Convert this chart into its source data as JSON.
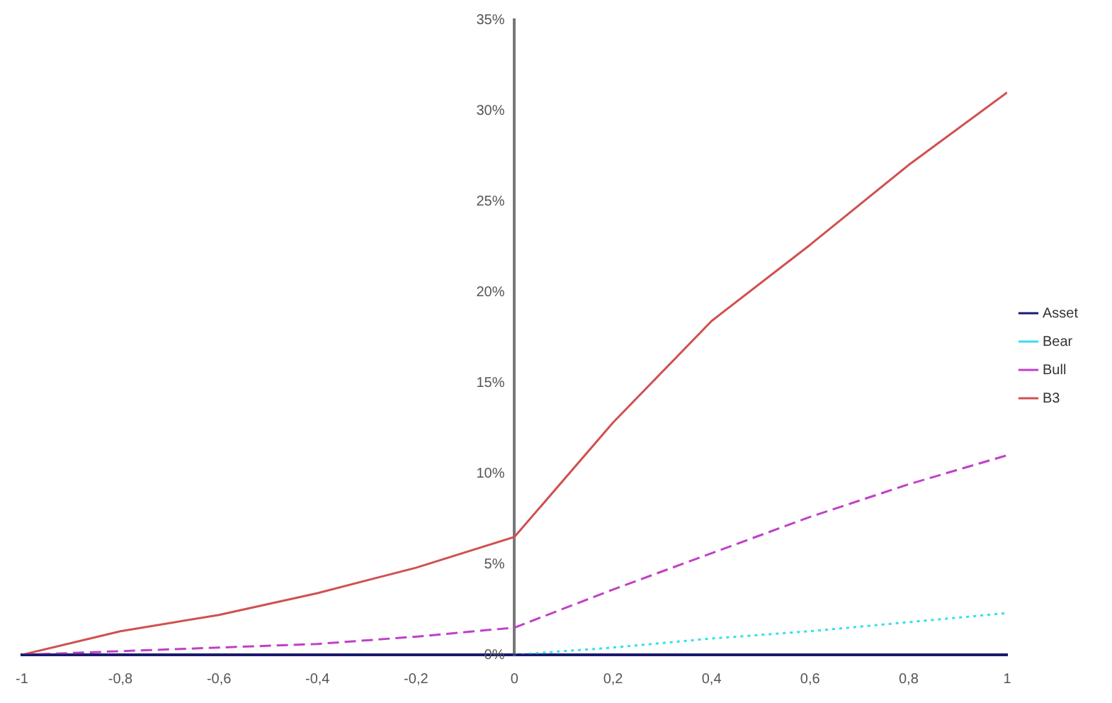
{
  "chart_data": {
    "type": "line",
    "x": [
      -1,
      -0.8,
      -0.6,
      -0.4,
      -0.2,
      0,
      0.2,
      0.4,
      0.6,
      0.8,
      1
    ],
    "series": [
      {
        "name": "Asset",
        "color": "#1a1a6e",
        "values": [
          0,
          0,
          0,
          0,
          0,
          0,
          0,
          0,
          0,
          0,
          0
        ],
        "line_style": "solid"
      },
      {
        "name": "Bear",
        "color": "#33e0e8",
        "values": [
          null,
          null,
          null,
          null,
          null,
          0,
          0.4,
          0.9,
          1.3,
          1.8,
          2.3
        ],
        "line_style": "dotted"
      },
      {
        "name": "Bull",
        "color": "#c040c8",
        "values": [
          0,
          0.2,
          0.4,
          0.6,
          1.0,
          1.5,
          3.6,
          5.6,
          7.6,
          9.4,
          11
        ],
        "line_style": "dashed"
      },
      {
        "name": "B3",
        "color": "#d05050",
        "values": [
          0,
          1.3,
          2.2,
          3.4,
          4.8,
          6.5,
          12.8,
          18.4,
          22.6,
          27,
          31
        ],
        "line_style": "solid"
      }
    ],
    "xlim": [
      -1,
      1
    ],
    "xticks": [
      -1,
      {
        "value": -0.8,
        "label": "-0,8"
      },
      {
        "value": -0.6,
        "label": "-0,6"
      },
      {
        "value": -0.4,
        "label": "-0,4"
      },
      {
        "value": -0.2,
        "label": "-0,2"
      },
      0,
      {
        "value": 0.2,
        "label": "0,2"
      },
      {
        "value": 0.4,
        "label": "0,4"
      },
      {
        "value": 0.6,
        "label": "0,6"
      },
      {
        "value": 0.8,
        "label": "0,8"
      },
      1
    ],
    "ylim": [
      0,
      35
    ],
    "yticks": [
      {
        "value": 0,
        "label": "0%"
      },
      {
        "value": 5,
        "label": "5%"
      },
      {
        "value": 10,
        "label": "10%"
      },
      {
        "value": 15,
        "label": "15%"
      },
      {
        "value": 20,
        "label": "20%"
      },
      {
        "value": 25,
        "label": "25%"
      },
      {
        "value": 30,
        "label": "30%"
      },
      {
        "value": 35,
        "label": "35%"
      }
    ],
    "grid": false,
    "legend": "right",
    "marker": "none"
  }
}
